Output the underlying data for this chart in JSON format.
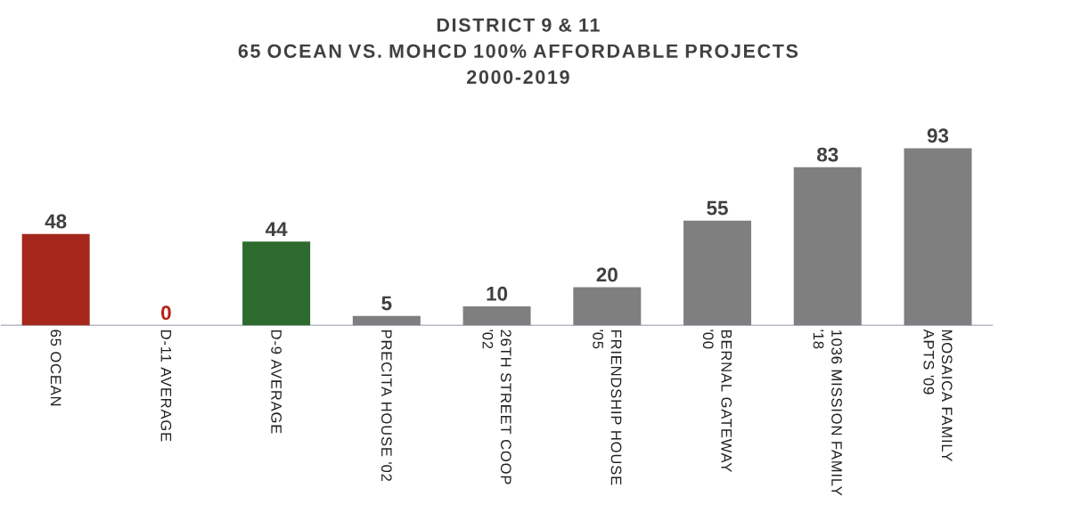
{
  "chart_data": {
    "type": "bar",
    "title": "DISTRICT 9 & 11\n65 OCEAN VS. MOHCD 100% AFFORDABLE PROJECTS\n2000-2019",
    "categories": [
      "65 OCEAN",
      "D-11 AVERAGE",
      "D-9 AVERAGE",
      "PRECITA HOUSE '02",
      "26TH STREET COOP '02",
      "FRIENDSHIP HOUSE '05",
      "BERNAL GATEWAY '00",
      "1036 MISSION FAMILY '18",
      "MOSAICA FAMILY APTS '09"
    ],
    "values": [
      48,
      0,
      44,
      5,
      10,
      20,
      55,
      83,
      93
    ],
    "colors": [
      "#a5271c",
      "#b52316",
      "#2d6a2d",
      "#7f7f7f",
      "#7f7f7f",
      "#7f7f7f",
      "#7f7f7f",
      "#7f7f7f",
      "#7f7f7f"
    ],
    "data_labels": true
  }
}
